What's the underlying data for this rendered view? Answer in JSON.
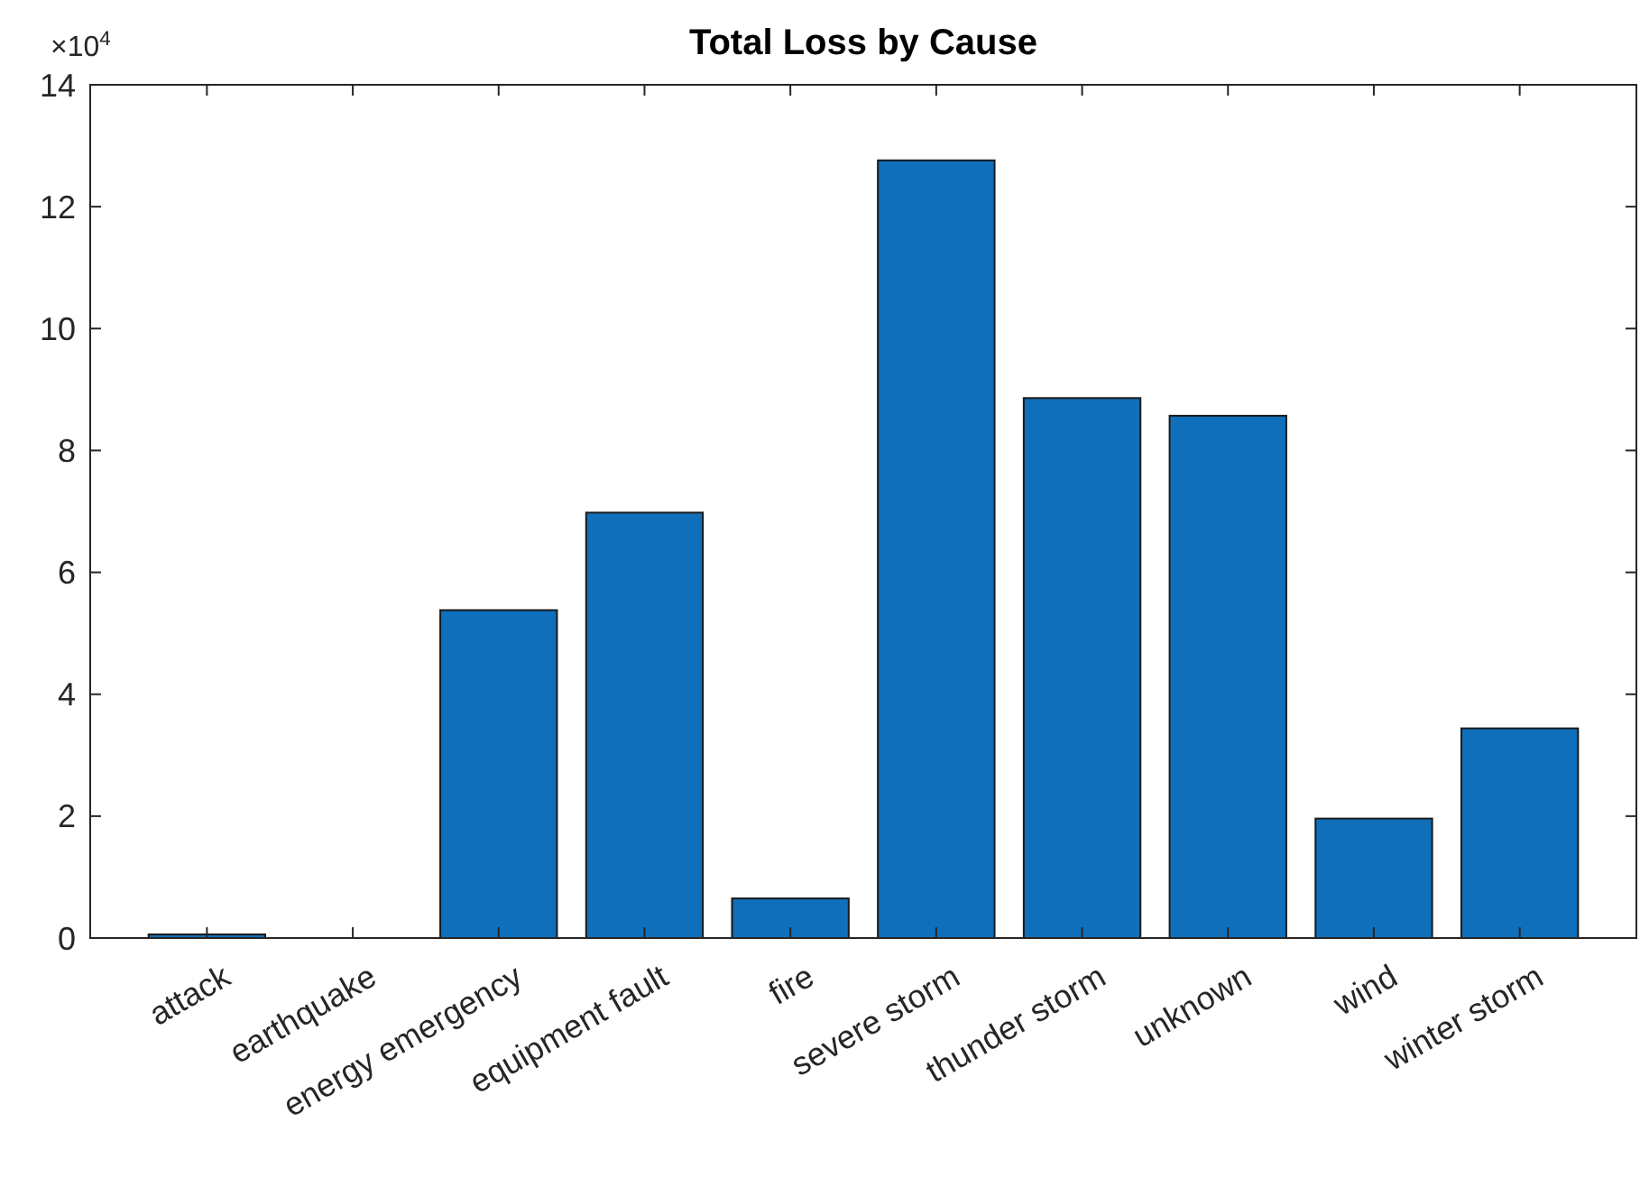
{
  "chart_data": {
    "type": "bar",
    "title": "Total Loss by Cause",
    "categories": [
      "attack",
      "earthquake",
      "energy emergency",
      "equipment fault",
      "fire",
      "severe storm",
      "thunder storm",
      "unknown",
      "wind",
      "winter storm"
    ],
    "values": [
      0.06,
      0,
      5.38,
      6.98,
      0.65,
      12.76,
      8.86,
      8.57,
      1.96,
      3.44
    ],
    "color": "#0f6fba",
    "ylim": [
      0,
      14
    ],
    "yticks": [
      0,
      2,
      4,
      6,
      8,
      10,
      12,
      14
    ],
    "annotations": [
      "×10$^{4}$"
    ],
    "grid": false
  }
}
